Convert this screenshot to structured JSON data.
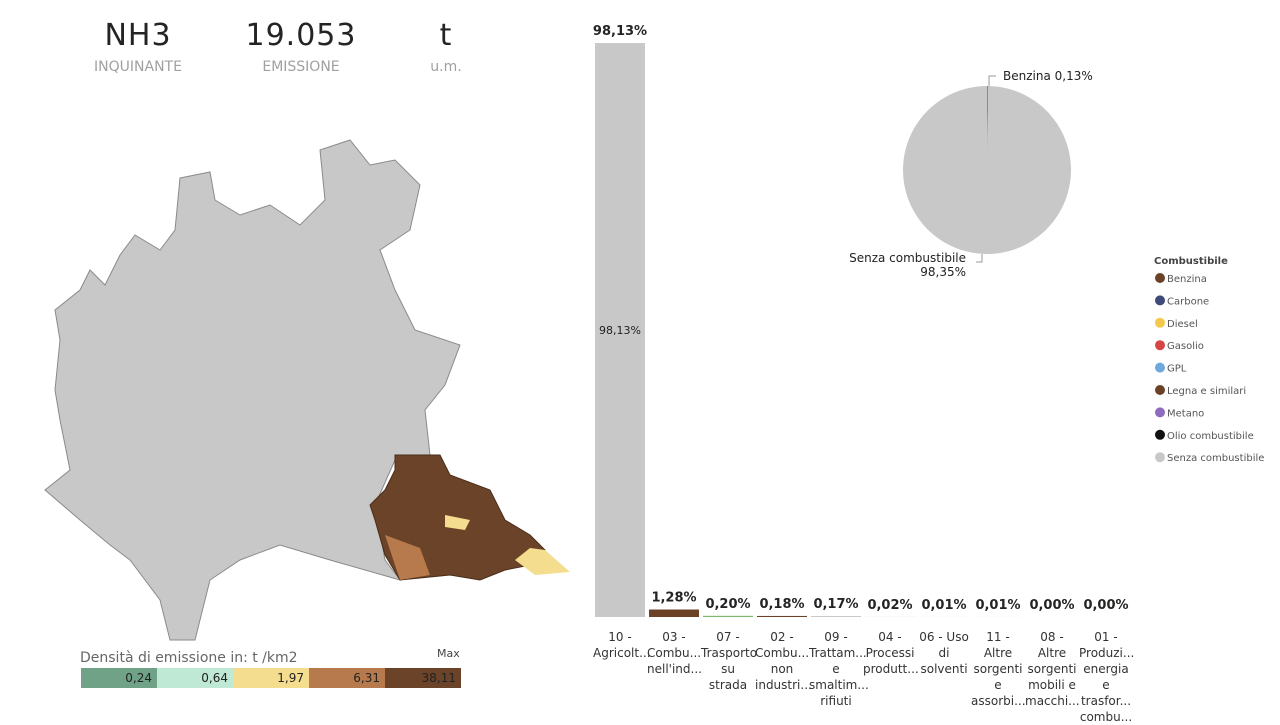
{
  "kpis": [
    {
      "value": "NH3",
      "label": "INQUINANTE"
    },
    {
      "value": "19.053",
      "label": "EMISSIONE"
    },
    {
      "value": "t",
      "label": "u.m."
    }
  ],
  "map_legend": {
    "title": "Densità di emissione in:  t /km2",
    "max_label": "Max",
    "classes": [
      {
        "label": "0,24",
        "color": "#6fa287"
      },
      {
        "label": "0,64",
        "color": "#bfe8d5"
      },
      {
        "label": "1,97",
        "color": "#f5dd8f"
      },
      {
        "label": "6,31",
        "color": "#b77a4c"
      },
      {
        "label": "38,11",
        "color": "#6b4328"
      }
    ]
  },
  "chart_data": [
    {
      "type": "bar",
      "categories": [
        "10 -\nAgricolt...",
        "03 -\nCombu...\nnell'ind...",
        "07 -\nTrasporto\nsu strada",
        "02 -\nCombu...\nnon\nindustri...",
        "09 -\nTrattam...\ne\nsmaltim...\nrifiuti",
        "04 -\nProcessi\nprodutt...",
        "06 - Uso\ndi\nsolventi",
        "11 - Altre\nsorgenti\ne\nassorbi...",
        "08 - Altre\nsorgenti\nmobili e\nmacchi...",
        "01 -\nProduzi...\nenergia e\ntrasfor...\ncombu..."
      ],
      "values": [
        98.13,
        1.28,
        0.2,
        0.18,
        0.17,
        0.02,
        0.01,
        0.01,
        0.0,
        0.0
      ],
      "value_labels": [
        "98,13%",
        "1,28%",
        "0,20%",
        "0,18%",
        "0,17%",
        "0,02%",
        "0,01%",
        "0,01%",
        "0,00%",
        "0,00%"
      ],
      "colors": [
        "#c8c8c8",
        "#6b4226",
        "#7cb86a",
        "#6b4226",
        "#c8c8c8",
        "#c8c8c8",
        "#c8c8c8",
        "#c8c8c8",
        "#c8c8c8",
        "#c8c8c8"
      ]
    },
    {
      "type": "pie",
      "legend_title": "Combustibile",
      "categories": [
        "Benzina",
        "Carbone",
        "Diesel",
        "Gasolio",
        "GPL",
        "Legna e similari",
        "Metano",
        "Olio combustibile",
        "Senza combustibile"
      ],
      "values": [
        0.13,
        null,
        null,
        null,
        null,
        null,
        null,
        null,
        98.35
      ],
      "value_labels": [
        "0,13%",
        null,
        null,
        null,
        null,
        null,
        null,
        null,
        "98,35%"
      ],
      "colors": [
        "#6b4226",
        "#3f4a7a",
        "#f2c94c",
        "#d64541",
        "#6fa8dc",
        "#6b4226",
        "#8e6bbf",
        "#111111",
        "#c8c8c8"
      ]
    }
  ]
}
